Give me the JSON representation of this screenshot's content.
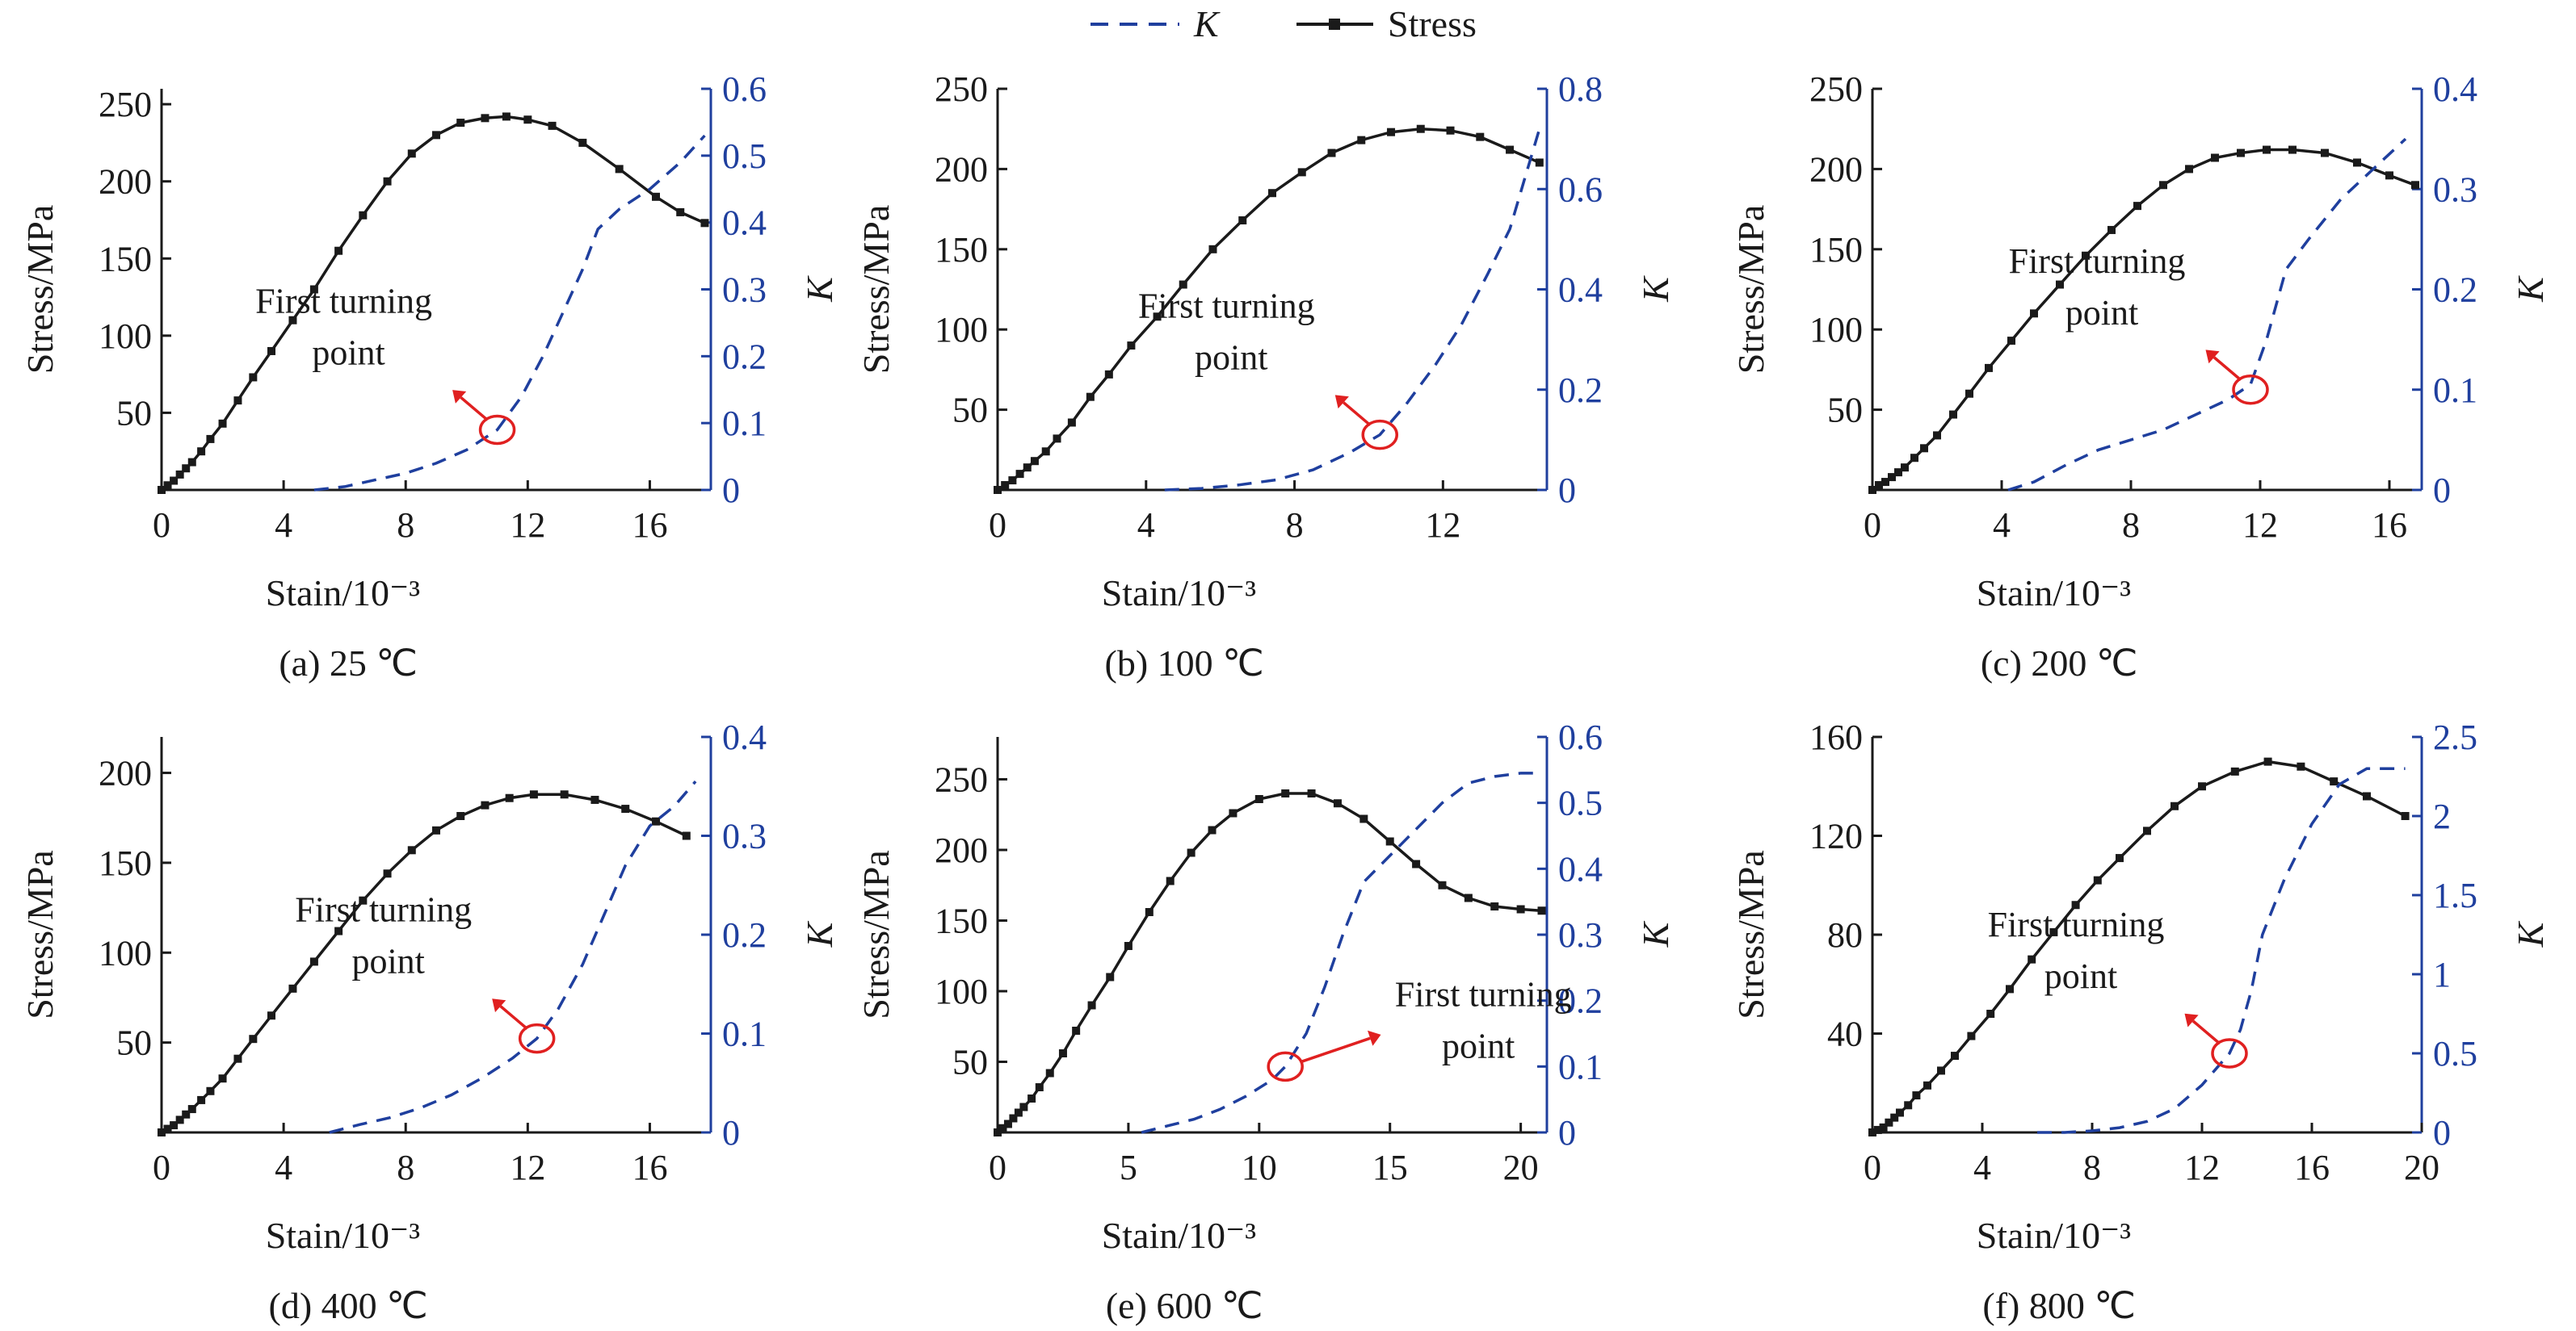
{
  "legend": [
    {
      "label": "K",
      "style": "dashed",
      "color": "#1f3f9e"
    },
    {
      "label": "Stress",
      "style": "solid-square-marker",
      "color": "#1a1a1a"
    }
  ],
  "colors": {
    "stress": "#1a1a1a",
    "k": "#1f3f9e",
    "annotation": "#e02020",
    "axes": "#1a1a1a",
    "right_axis": "#1f3f9e"
  },
  "chart_data": [
    {
      "type": "line",
      "caption": "(a) 25 ℃",
      "xlabel": "Stain/10⁻³",
      "ylabel": "Stress/MPa",
      "y2label": "K",
      "xlim": [
        0,
        18
      ],
      "ylim": [
        0,
        260
      ],
      "y2lim": [
        0,
        0.6
      ],
      "xticks": [
        0,
        4,
        8,
        12,
        16
      ],
      "yticks": [
        50,
        100,
        150,
        200,
        250
      ],
      "y2ticks": [
        0,
        0.1,
        0.2,
        0.3,
        0.4,
        0.5,
        0.6
      ],
      "annotation": {
        "text": [
          "First turning",
          "point"
        ],
        "at": [
          11.0,
          0.09
        ]
      },
      "series": [
        {
          "name": "Stress",
          "axis": "left",
          "x": [
            0,
            0.2,
            0.4,
            0.6,
            0.8,
            1.0,
            1.3,
            1.6,
            2.0,
            2.5,
            3.0,
            3.6,
            4.3,
            5.0,
            5.8,
            6.6,
            7.4,
            8.2,
            9.0,
            9.8,
            10.6,
            11.3,
            12.0,
            12.8,
            13.8,
            15.0,
            16.2,
            17.0,
            17.8
          ],
          "y": [
            0,
            3,
            6,
            10,
            14,
            18,
            25,
            33,
            43,
            58,
            73,
            90,
            110,
            130,
            155,
            178,
            200,
            218,
            230,
            238,
            241,
            242,
            240,
            236,
            225,
            208,
            190,
            180,
            173
          ]
        },
        {
          "name": "K",
          "axis": "right",
          "x": [
            5.0,
            6.0,
            7.0,
            8.0,
            9.0,
            10.0,
            11.0,
            11.8,
            12.5,
            13.2,
            13.8,
            14.3,
            15.0,
            16.0,
            17.0,
            17.8
          ],
          "y": [
            0,
            0.005,
            0.015,
            0.025,
            0.04,
            0.06,
            0.09,
            0.14,
            0.2,
            0.27,
            0.33,
            0.39,
            0.42,
            0.45,
            0.49,
            0.53
          ]
        }
      ]
    },
    {
      "type": "line",
      "caption": "(b) 100 ℃",
      "xlabel": "Stain/10⁻³",
      "ylabel": "Stress/MPa",
      "y2label": "K",
      "xlim": [
        0,
        14.8
      ],
      "ylim": [
        0,
        250
      ],
      "y2lim": [
        0,
        0.8
      ],
      "xticks": [
        0,
        4,
        8,
        12
      ],
      "yticks": [
        50,
        100,
        150,
        200,
        250
      ],
      "y2ticks": [
        0,
        0.2,
        0.4,
        0.6,
        0.8
      ],
      "annotation": {
        "text": [
          "First turning",
          "point"
        ],
        "at": [
          10.3,
          0.11
        ]
      },
      "series": [
        {
          "name": "Stress",
          "axis": "left",
          "x": [
            0,
            0.2,
            0.4,
            0.6,
            0.8,
            1.0,
            1.3,
            1.6,
            2.0,
            2.5,
            3.0,
            3.6,
            4.3,
            5.0,
            5.8,
            6.6,
            7.4,
            8.2,
            9.0,
            9.8,
            10.6,
            11.4,
            12.2,
            13.0,
            13.8,
            14.6
          ],
          "y": [
            0,
            3,
            6,
            10,
            14,
            18,
            24,
            32,
            42,
            58,
            72,
            90,
            108,
            128,
            150,
            168,
            185,
            198,
            210,
            218,
            223,
            225,
            224,
            220,
            212,
            204
          ]
        },
        {
          "name": "K",
          "axis": "right",
          "x": [
            4.5,
            5.5,
            6.5,
            7.5,
            8.5,
            9.5,
            10.3,
            11.0,
            11.8,
            12.5,
            13.2,
            13.8,
            14.2,
            14.6
          ],
          "y": [
            0,
            0.003,
            0.01,
            0.02,
            0.04,
            0.075,
            0.11,
            0.17,
            0.25,
            0.33,
            0.43,
            0.52,
            0.62,
            0.72
          ]
        }
      ]
    },
    {
      "type": "line",
      "caption": "(c) 200 ℃",
      "xlabel": "Stain/10⁻³",
      "ylabel": "Stress/MPa",
      "y2label": "K",
      "xlim": [
        0,
        17
      ],
      "ylim": [
        0,
        250
      ],
      "y2lim": [
        0,
        0.4
      ],
      "xticks": [
        0,
        4,
        8,
        12,
        16
      ],
      "yticks": [
        50,
        100,
        150,
        200,
        250
      ],
      "y2ticks": [
        0,
        0.1,
        0.2,
        0.3,
        0.4
      ],
      "annotation": {
        "text": [
          "First turning",
          "point"
        ],
        "at": [
          11.7,
          0.1
        ]
      },
      "series": [
        {
          "name": "Stress",
          "axis": "left",
          "x": [
            0,
            0.2,
            0.4,
            0.6,
            0.8,
            1.0,
            1.3,
            1.6,
            2.0,
            2.5,
            3.0,
            3.6,
            4.3,
            5.0,
            5.8,
            6.6,
            7.4,
            8.2,
            9.0,
            9.8,
            10.6,
            11.4,
            12.2,
            13.0,
            14.0,
            15.0,
            16.0,
            16.8
          ],
          "y": [
            0,
            3,
            5,
            8,
            11,
            14,
            20,
            26,
            34,
            47,
            60,
            76,
            93,
            110,
            128,
            146,
            162,
            177,
            190,
            200,
            207,
            210,
            212,
            212,
            210,
            204,
            196,
            190
          ]
        },
        {
          "name": "K",
          "axis": "right",
          "x": [
            4.2,
            5.0,
            6.0,
            7.0,
            8.0,
            9.0,
            10.0,
            11.0,
            11.7,
            12.2,
            12.8,
            13.5,
            14.5,
            15.5,
            16.5
          ],
          "y": [
            0,
            0.008,
            0.025,
            0.04,
            0.05,
            0.06,
            0.075,
            0.09,
            0.105,
            0.15,
            0.22,
            0.25,
            0.29,
            0.32,
            0.35
          ]
        }
      ]
    },
    {
      "type": "line",
      "caption": "(d) 400 ℃",
      "xlabel": "Stain/10⁻³",
      "ylabel": "Stress/MPa",
      "y2label": "K",
      "xlim": [
        0,
        18
      ],
      "ylim": [
        0,
        220
      ],
      "y2lim": [
        0,
        0.4
      ],
      "xticks": [
        0,
        4,
        8,
        12,
        16
      ],
      "yticks": [
        50,
        100,
        150,
        200
      ],
      "y2ticks": [
        0,
        0.1,
        0.2,
        0.3,
        0.4
      ],
      "annotation": {
        "text": [
          "First turning",
          "point"
        ],
        "at": [
          12.3,
          0.095
        ]
      },
      "series": [
        {
          "name": "Stress",
          "axis": "left",
          "x": [
            0,
            0.2,
            0.4,
            0.6,
            0.8,
            1.0,
            1.3,
            1.6,
            2.0,
            2.5,
            3.0,
            3.6,
            4.3,
            5.0,
            5.8,
            6.6,
            7.4,
            8.2,
            9.0,
            9.8,
            10.6,
            11.4,
            12.2,
            13.2,
            14.2,
            15.2,
            16.2,
            17.2
          ],
          "y": [
            0,
            2,
            4,
            7,
            10,
            13,
            18,
            23,
            30,
            41,
            52,
            65,
            80,
            95,
            112,
            129,
            144,
            157,
            168,
            176,
            182,
            186,
            188,
            188,
            185,
            180,
            173,
            165
          ]
        },
        {
          "name": "K",
          "axis": "right",
          "x": [
            5.5,
            6.5,
            7.5,
            8.5,
            9.5,
            10.5,
            11.5,
            12.3,
            13.0,
            13.8,
            14.5,
            15.2,
            16.0,
            16.8,
            17.5
          ],
          "y": [
            0,
            0.008,
            0.015,
            0.025,
            0.038,
            0.055,
            0.075,
            0.095,
            0.125,
            0.17,
            0.22,
            0.27,
            0.31,
            0.33,
            0.355
          ]
        }
      ]
    },
    {
      "type": "line",
      "caption": "(e) 600 ℃",
      "xlabel": "Stain/10⁻³",
      "ylabel": "Stress/MPa",
      "y2label": "K",
      "xlim": [
        0,
        21
      ],
      "ylim": [
        0,
        280
      ],
      "y2lim": [
        0,
        0.6
      ],
      "xticks": [
        0,
        5,
        10,
        15,
        20
      ],
      "yticks": [
        50,
        100,
        150,
        200,
        250
      ],
      "y2ticks": [
        0,
        0.1,
        0.2,
        0.3,
        0.4,
        0.5,
        0.6
      ],
      "annotation": {
        "text": [
          "First turning",
          "point"
        ],
        "at": [
          11.0,
          0.1
        ]
      },
      "series": [
        {
          "name": "Stress",
          "axis": "left",
          "x": [
            0,
            0.2,
            0.4,
            0.6,
            0.8,
            1.0,
            1.3,
            1.6,
            2.0,
            2.5,
            3.0,
            3.6,
            4.3,
            5.0,
            5.8,
            6.6,
            7.4,
            8.2,
            9.0,
            10.0,
            11.0,
            12.0,
            13.0,
            14.0,
            15.0,
            16.0,
            17.0,
            18.0,
            19.0,
            20.0,
            20.8
          ],
          "y": [
            0,
            3,
            6,
            10,
            14,
            18,
            24,
            32,
            42,
            56,
            72,
            90,
            110,
            132,
            156,
            178,
            198,
            214,
            226,
            236,
            240,
            240,
            233,
            222,
            206,
            190,
            175,
            166,
            160,
            158,
            157
          ]
        },
        {
          "name": "K",
          "axis": "right",
          "x": [
            5.5,
            6.5,
            7.5,
            8.5,
            9.5,
            10.5,
            11.0,
            11.8,
            12.5,
            13.2,
            14.0,
            15.0,
            16.0,
            17.0,
            18.0,
            19.0,
            20.0,
            20.8
          ],
          "y": [
            0,
            0.01,
            0.02,
            0.035,
            0.055,
            0.08,
            0.1,
            0.15,
            0.22,
            0.3,
            0.38,
            0.42,
            0.46,
            0.5,
            0.53,
            0.54,
            0.545,
            0.545
          ]
        }
      ]
    },
    {
      "type": "line",
      "caption": "(f) 800 ℃",
      "xlabel": "Stain/10⁻³",
      "ylabel": "Stress/MPa",
      "y2label": "K",
      "xlim": [
        0,
        20
      ],
      "ylim": [
        0,
        160
      ],
      "y2lim": [
        0,
        2.5
      ],
      "xticks": [
        0,
        4,
        8,
        12,
        16,
        20
      ],
      "yticks": [
        40,
        80,
        120,
        160
      ],
      "y2ticks": [
        0,
        0.5,
        1.0,
        1.5,
        2.0,
        2.5
      ],
      "annotation": {
        "text": [
          "First turning",
          "point"
        ],
        "at": [
          13.0,
          0.5
        ]
      },
      "series": [
        {
          "name": "Stress",
          "axis": "left",
          "x": [
            0,
            0.2,
            0.4,
            0.6,
            0.8,
            1.0,
            1.3,
            1.6,
            2.0,
            2.5,
            3.0,
            3.6,
            4.3,
            5.0,
            5.8,
            6.6,
            7.4,
            8.2,
            9.0,
            10.0,
            11.0,
            12.0,
            13.2,
            14.4,
            15.6,
            16.8,
            18.0,
            19.4
          ],
          "y": [
            0,
            1,
            2,
            4,
            6,
            8,
            11,
            15,
            19,
            25,
            31,
            39,
            48,
            58,
            70,
            81,
            92,
            102,
            111,
            122,
            132,
            140,
            146,
            150,
            148,
            142,
            136,
            128
          ]
        },
        {
          "name": "K",
          "axis": "right",
          "x": [
            6.0,
            7.0,
            8.0,
            9.0,
            10.0,
            11.0,
            12.0,
            12.6,
            13.0,
            13.4,
            13.8,
            14.2,
            15.0,
            16.0,
            17.0,
            18.0,
            19.4
          ],
          "y": [
            0,
            0,
            0.01,
            0.03,
            0.07,
            0.15,
            0.3,
            0.42,
            0.5,
            0.65,
            0.9,
            1.25,
            1.6,
            1.95,
            2.2,
            2.3,
            2.3
          ]
        }
      ]
    }
  ]
}
